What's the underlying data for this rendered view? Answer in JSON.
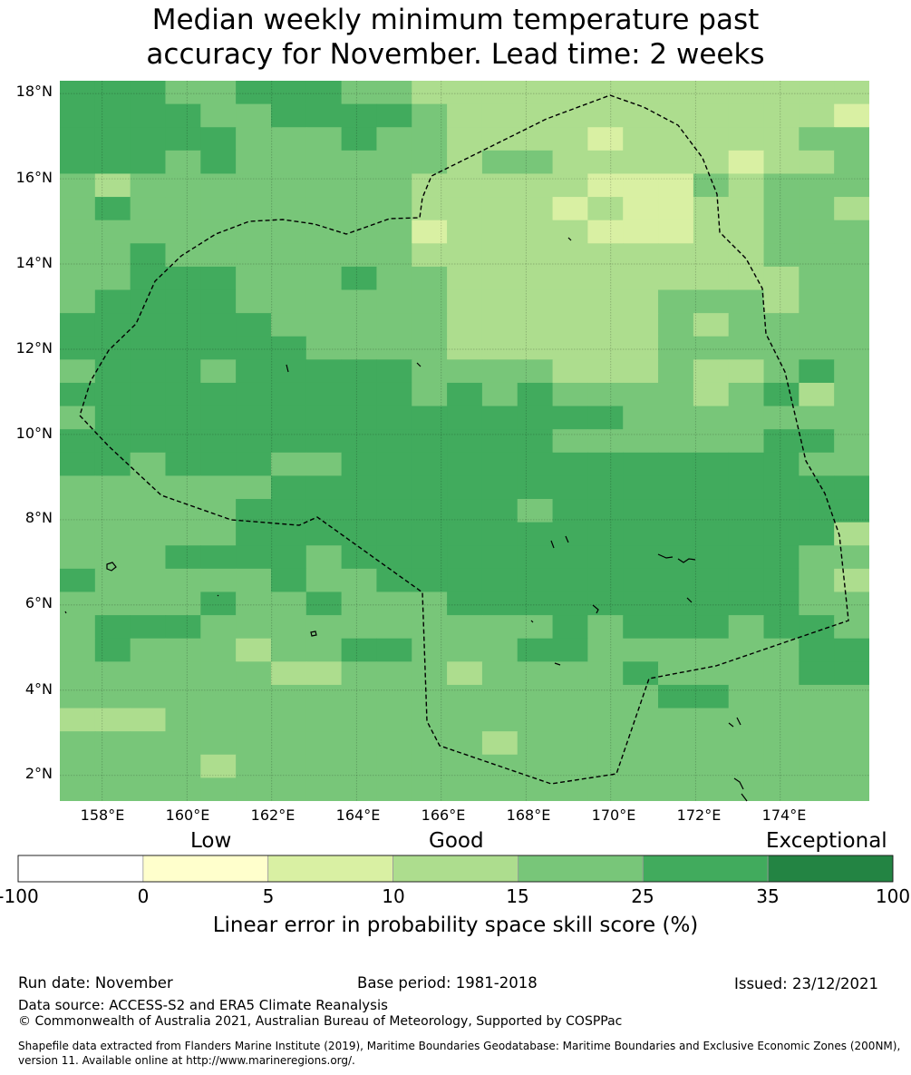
{
  "title": {
    "line1": "Median weekly minimum temperature past",
    "line2": "accuracy for November. Lead time: 2 weeks"
  },
  "map": {
    "lat_labels": [
      "18°N",
      "16°N",
      "14°N",
      "12°N",
      "10°N",
      "8°N",
      "6°N",
      "4°N",
      "2°N"
    ],
    "lon_labels": [
      "158°E",
      "160°E",
      "162°E",
      "164°E",
      "166°E",
      "168°E",
      "170°E",
      "172°E",
      "174°E"
    ],
    "extent": {
      "lon_min": 157.0,
      "lon_max": 176.1,
      "lat_min": 1.4,
      "lat_max": 18.3
    },
    "cell_size_deg": 0.83,
    "grid_cols": 23,
    "grid_rows": 31,
    "cell_classes": [
      "55544555443333333333333",
      "55554455554333333333332",
      "55555444544333323333344",
      "55545444444344333332334",
      "43444444443333322243444",
      "45444444443333232233443",
      "44444444442333322233444",
      "44544444443333333333444",
      "44555444544333333333344",
      "45555444444333333444344",
      "55555544444333333434444",
      "55555554444333333444444",
      "45554555554444333433454",
      "55555555554545444434534",
      "45555555555555554444444",
      "55555555555555444444554",
      "55455544555555555555544",
      "44444455555555555555555",
      "44444555555554555555555",
      "44444555555555555555553",
      "44455554555555555555544",
      "54444454455555555555543",
      "44445445444555555555544",
      "45554444444444545554554",
      "45444344554445544444455",
      "44444433444344445444455",
      "44444444444444444554444",
      "33344444444444444444444",
      "44444444444434444444444",
      "44443444444444444444444",
      "44444444444444444444444"
    ]
  },
  "colors": {
    "land": "#000000",
    "boundary": "#000000",
    "gridline": "#000000"
  },
  "colorbar": {
    "category_labels": [
      "Low",
      "Good",
      "Exceptional"
    ],
    "ticks": [
      "-100",
      "0",
      "5",
      "10",
      "15",
      "25",
      "35",
      "100"
    ],
    "colors": [
      "#ffffff",
      "#ffffcc",
      "#d9f0a3",
      "#addd8e",
      "#78c679",
      "#41ab5d",
      "#238443"
    ],
    "title": "Linear error in probability space skill score (%)"
  },
  "footer": {
    "run_date": "Run date: November",
    "base_period": "Base period: 1981-2018",
    "issued": "Issued: 23/12/2021",
    "data_source": "Data source: ACCESS-S2 and ERA5 Climate Reanalysis",
    "copyright": "© Commonwealth of Australia 2021, Australian Bureau of Meteorology, Supported by COSPPac",
    "shapefile_line1": "Shapefile data extracted from Flanders Marine Institute (2019), Maritime Boundaries Geodatabase: Maritime Boundaries and Exclusive Economic Zones (200NM),",
    "shapefile_line2": "version 11. Available online at http://www.marineregions.org/."
  }
}
